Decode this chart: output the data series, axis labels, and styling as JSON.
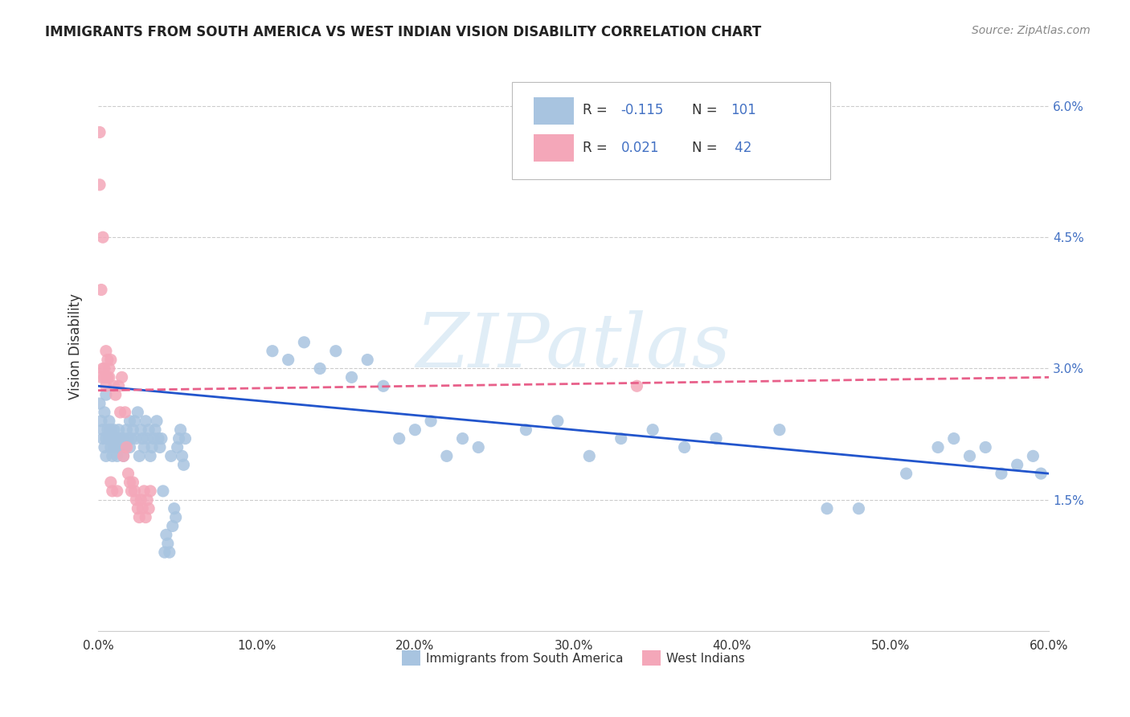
{
  "title": "IMMIGRANTS FROM SOUTH AMERICA VS WEST INDIAN VISION DISABILITY CORRELATION CHART",
  "source": "Source: ZipAtlas.com",
  "ylabel": "Vision Disability",
  "x_min": 0.0,
  "x_max": 0.6,
  "y_min": 0.0,
  "y_max": 0.065,
  "y_ticks": [
    0.015,
    0.03,
    0.045,
    0.06
  ],
  "y_tick_labels": [
    "1.5%",
    "3.0%",
    "4.5%",
    "6.0%"
  ],
  "watermark": "ZIPatlas",
  "color_blue": "#a8c4e0",
  "color_pink": "#f4a7b9",
  "color_blue_dark": "#4472c4",
  "color_trendline_blue": "#2255cc",
  "color_trendline_pink": "#e8608a",
  "blue_x": [
    0.001,
    0.002,
    0.003,
    0.003,
    0.004,
    0.004,
    0.005,
    0.005,
    0.005,
    0.006,
    0.007,
    0.007,
    0.008,
    0.008,
    0.009,
    0.009,
    0.01,
    0.01,
    0.011,
    0.011,
    0.012,
    0.012,
    0.013,
    0.013,
    0.014,
    0.015,
    0.016,
    0.016,
    0.017,
    0.018,
    0.019,
    0.02,
    0.02,
    0.021,
    0.022,
    0.023,
    0.024,
    0.025,
    0.026,
    0.027,
    0.028,
    0.029,
    0.03,
    0.031,
    0.032,
    0.033,
    0.034,
    0.035,
    0.036,
    0.037,
    0.038,
    0.039,
    0.04,
    0.041,
    0.042,
    0.043,
    0.044,
    0.045,
    0.046,
    0.047,
    0.048,
    0.049,
    0.05,
    0.051,
    0.052,
    0.053,
    0.054,
    0.055,
    0.11,
    0.12,
    0.13,
    0.14,
    0.15,
    0.16,
    0.17,
    0.18,
    0.19,
    0.2,
    0.21,
    0.22,
    0.23,
    0.24,
    0.27,
    0.29,
    0.31,
    0.33,
    0.35,
    0.37,
    0.39,
    0.43,
    0.46,
    0.48,
    0.51,
    0.53,
    0.54,
    0.55,
    0.56,
    0.57,
    0.58,
    0.59,
    0.595
  ],
  "blue_y": [
    0.026,
    0.024,
    0.022,
    0.023,
    0.025,
    0.021,
    0.027,
    0.022,
    0.02,
    0.023,
    0.024,
    0.022,
    0.021,
    0.023,
    0.02,
    0.022,
    0.021,
    0.023,
    0.022,
    0.021,
    0.022,
    0.02,
    0.021,
    0.023,
    0.022,
    0.021,
    0.02,
    0.022,
    0.021,
    0.023,
    0.022,
    0.024,
    0.021,
    0.022,
    0.023,
    0.024,
    0.022,
    0.025,
    0.02,
    0.023,
    0.022,
    0.021,
    0.024,
    0.022,
    0.023,
    0.02,
    0.021,
    0.022,
    0.023,
    0.024,
    0.022,
    0.021,
    0.022,
    0.016,
    0.009,
    0.011,
    0.01,
    0.009,
    0.02,
    0.012,
    0.014,
    0.013,
    0.021,
    0.022,
    0.023,
    0.02,
    0.019,
    0.022,
    0.032,
    0.031,
    0.033,
    0.03,
    0.032,
    0.029,
    0.031,
    0.028,
    0.022,
    0.023,
    0.024,
    0.02,
    0.022,
    0.021,
    0.023,
    0.024,
    0.02,
    0.022,
    0.023,
    0.021,
    0.022,
    0.023,
    0.014,
    0.014,
    0.018,
    0.021,
    0.022,
    0.02,
    0.021,
    0.018,
    0.019,
    0.02,
    0.018
  ],
  "pink_x": [
    0.001,
    0.001,
    0.002,
    0.002,
    0.003,
    0.003,
    0.004,
    0.004,
    0.005,
    0.005,
    0.006,
    0.006,
    0.007,
    0.007,
    0.008,
    0.008,
    0.009,
    0.01,
    0.011,
    0.012,
    0.013,
    0.014,
    0.015,
    0.016,
    0.017,
    0.018,
    0.019,
    0.02,
    0.021,
    0.022,
    0.023,
    0.024,
    0.025,
    0.026,
    0.027,
    0.028,
    0.029,
    0.03,
    0.031,
    0.032,
    0.033,
    0.34
  ],
  "pink_y": [
    0.057,
    0.051,
    0.039,
    0.029,
    0.045,
    0.03,
    0.03,
    0.029,
    0.032,
    0.028,
    0.029,
    0.031,
    0.03,
    0.029,
    0.031,
    0.017,
    0.016,
    0.028,
    0.027,
    0.016,
    0.028,
    0.025,
    0.029,
    0.02,
    0.025,
    0.021,
    0.018,
    0.017,
    0.016,
    0.017,
    0.016,
    0.015,
    0.014,
    0.013,
    0.015,
    0.014,
    0.016,
    0.013,
    0.015,
    0.014,
    0.016,
    0.028
  ]
}
